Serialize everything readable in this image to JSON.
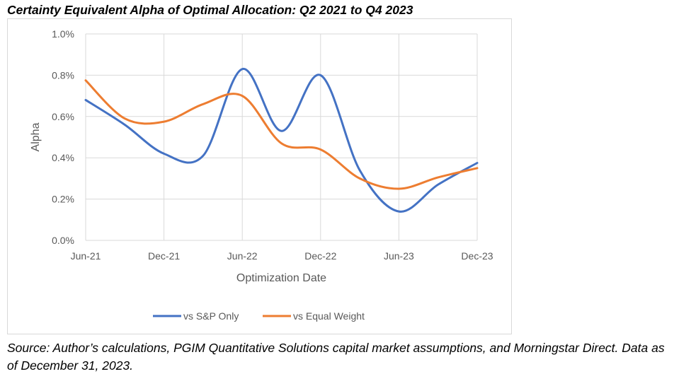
{
  "title": "Certainty Equivalent Alpha of Optimal Allocation: Q2 2021 to Q4 2023",
  "source": "Source: Author’s calculations, PGIM Quantitative Solutions capital market assumptions, and Morningstar Direct.  Data as of December 31, 2023.",
  "chart_data": {
    "type": "line",
    "xlabel": "Optimization Date",
    "ylabel": "Alpha",
    "x_tick_labels": [
      "Jun-21",
      "Dec-21",
      "Jun-22",
      "Dec-22",
      "Jun-23",
      "Dec-23"
    ],
    "y_tick_labels": [
      "0.0%",
      "0.2%",
      "0.4%",
      "0.6%",
      "0.8%",
      "1.0%"
    ],
    "ylim": [
      0.0,
      1.0
    ],
    "x": [
      "Jun-21",
      "Sep-21",
      "Dec-21",
      "Mar-22",
      "Jun-22",
      "Sep-22",
      "Dec-22",
      "Mar-23",
      "Jun-23",
      "Sep-23",
      "Dec-23"
    ],
    "series": [
      {
        "name": "vs S&P Only",
        "color": "#4472C4",
        "values": [
          0.68,
          0.56,
          0.42,
          0.41,
          0.83,
          0.53,
          0.8,
          0.34,
          0.14,
          0.27,
          0.375
        ]
      },
      {
        "name": "vs Equal Weight",
        "color": "#ED7D31",
        "values": [
          0.775,
          0.59,
          0.575,
          0.66,
          0.7,
          0.47,
          0.44,
          0.3,
          0.25,
          0.305,
          0.35
        ]
      }
    ],
    "grid": true,
    "legend": "bottom"
  }
}
